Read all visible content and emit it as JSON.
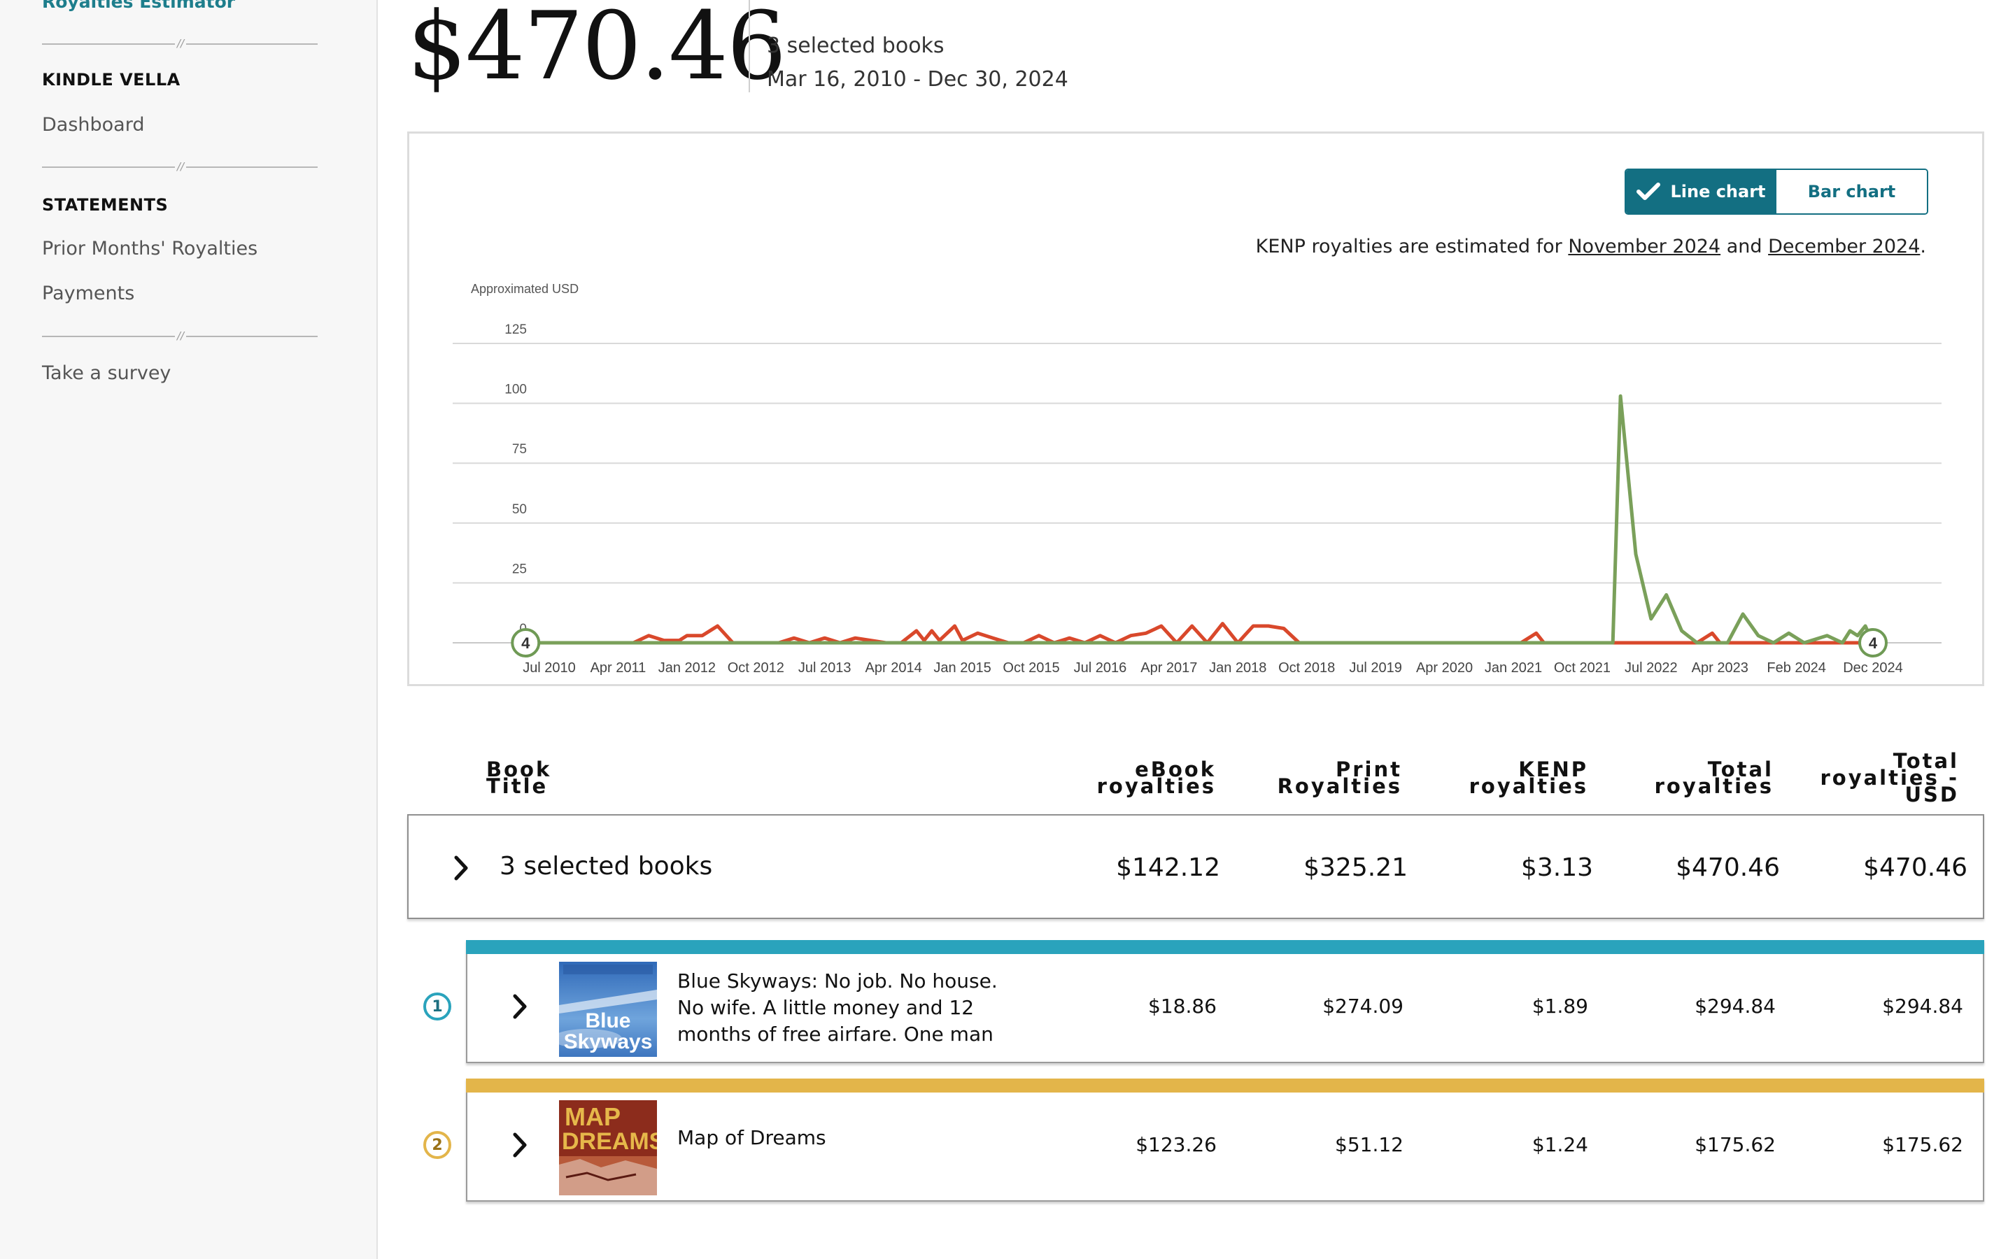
{
  "sidebar": {
    "top_link": "Royalties Estimator",
    "section_vella": "KINDLE VELLA",
    "dashboard": "Dashboard",
    "section_statements": "STATEMENTS",
    "prior_months": "Prior Months' Royalties",
    "payments": "Payments",
    "survey": "Take a survey"
  },
  "header": {
    "total": "$470.46",
    "selected": "3 selected books",
    "range": "Mar 16, 2010 - Dec 30, 2024"
  },
  "chart_controls": {
    "line_label": "Line chart",
    "bar_label": "Bar chart",
    "selected": "Line chart",
    "note_prefix": "KENP royalties are estimated for ",
    "note_month1": "November 2024",
    "note_and": " and ",
    "note_month2": "December 2024",
    "note_suffix": "."
  },
  "chart_data": {
    "type": "line",
    "ylabel": "Approximated USD",
    "ylim": [
      0,
      125
    ],
    "y_ticks": [
      0,
      25,
      50,
      75,
      100,
      125
    ],
    "x_range": [
      "2010-03",
      "2024-12"
    ],
    "x_ticks": [
      "Jul 2010",
      "Apr 2011",
      "Jan 2012",
      "Oct 2012",
      "Jul 2013",
      "Apr 2014",
      "Jan 2015",
      "Oct 2015",
      "Jul 2016",
      "Apr 2017",
      "Jan 2018",
      "Oct 2018",
      "Jul 2019",
      "Apr 2020",
      "Jan 2021",
      "Oct 2021",
      "Jul 2022",
      "Apr 2023",
      "Feb 2024",
      "Dec 2024"
    ],
    "grid": true,
    "start_marker": "4",
    "end_marker": "4",
    "series": [
      {
        "color": "#d9482b",
        "points": [
          [
            "2010-03",
            0
          ],
          [
            "2011-06",
            0
          ],
          [
            "2011-08",
            3
          ],
          [
            "2011-10",
            1
          ],
          [
            "2011-12",
            1
          ],
          [
            "2012-01",
            3
          ],
          [
            "2012-03",
            3
          ],
          [
            "2012-05",
            7
          ],
          [
            "2012-07",
            0
          ],
          [
            "2013-01",
            0
          ],
          [
            "2013-03",
            2
          ],
          [
            "2013-05",
            0
          ],
          [
            "2013-07",
            2
          ],
          [
            "2013-09",
            0
          ],
          [
            "2013-11",
            2
          ],
          [
            "2014-01",
            1
          ],
          [
            "2014-03",
            0
          ],
          [
            "2014-05",
            0
          ],
          [
            "2014-07",
            5
          ],
          [
            "2014-08",
            1
          ],
          [
            "2014-09",
            5
          ],
          [
            "2014-10",
            1
          ],
          [
            "2014-12",
            7
          ],
          [
            "2015-01",
            1
          ],
          [
            "2015-03",
            4
          ],
          [
            "2015-05",
            2
          ],
          [
            "2015-07",
            0
          ],
          [
            "2015-09",
            0
          ],
          [
            "2015-11",
            3
          ],
          [
            "2016-01",
            0
          ],
          [
            "2016-03",
            2
          ],
          [
            "2016-05",
            0
          ],
          [
            "2016-07",
            3
          ],
          [
            "2016-09",
            0
          ],
          [
            "2016-11",
            3
          ],
          [
            "2017-01",
            4
          ],
          [
            "2017-03",
            7
          ],
          [
            "2017-05",
            0
          ],
          [
            "2017-07",
            7
          ],
          [
            "2017-09",
            0
          ],
          [
            "2017-11",
            8
          ],
          [
            "2018-01",
            0
          ],
          [
            "2018-03",
            7
          ],
          [
            "2018-05",
            7
          ],
          [
            "2018-07",
            6
          ],
          [
            "2018-09",
            0
          ],
          [
            "2021-02",
            0
          ],
          [
            "2021-04",
            4
          ],
          [
            "2021-05",
            0
          ],
          [
            "2023-01",
            0
          ],
          [
            "2023-03",
            4
          ],
          [
            "2023-04",
            0
          ],
          [
            "2024-12",
            0
          ]
        ]
      },
      {
        "color": "#7aa05a",
        "points": [
          [
            "2010-03",
            0
          ],
          [
            "2016-03",
            0
          ],
          [
            "2022-02",
            0
          ],
          [
            "2022-03",
            103
          ],
          [
            "2022-05",
            37
          ],
          [
            "2022-07",
            10
          ],
          [
            "2022-09",
            20
          ],
          [
            "2022-11",
            5
          ],
          [
            "2023-01",
            0
          ],
          [
            "2023-05",
            0
          ],
          [
            "2023-07",
            12
          ],
          [
            "2023-09",
            3
          ],
          [
            "2023-11",
            0
          ],
          [
            "2024-01",
            4
          ],
          [
            "2024-03",
            0
          ],
          [
            "2024-06",
            3
          ],
          [
            "2024-08",
            0
          ],
          [
            "2024-09",
            5
          ],
          [
            "2024-10",
            3
          ],
          [
            "2024-11",
            7
          ],
          [
            "2024-12",
            0
          ]
        ]
      }
    ]
  },
  "table": {
    "headers": {
      "title": [
        "Book",
        "Title"
      ],
      "ebook": [
        "eBook",
        "royalties"
      ],
      "print": [
        "Print",
        "Royalties"
      ],
      "kenp": [
        "KENP",
        "royalties"
      ],
      "total": [
        "Total",
        "royalties"
      ],
      "total_usd": [
        "Total",
        "royalties -",
        "USD"
      ]
    },
    "summary": {
      "title": "3 selected books",
      "ebook": "$142.12",
      "print": "$325.21",
      "kenp": "$3.13",
      "total": "$470.46",
      "total_usd": "$470.46"
    },
    "books": [
      {
        "badge": "1",
        "color": "#2aa3bc",
        "cover_text": [
          "Blue",
          "Skyways"
        ],
        "title": "Blue Skyways: No job. No house. No wife. A little money and 12 months of free airfare. One man answers his",
        "ebook": "$18.86",
        "print": "$274.09",
        "kenp": "$1.89",
        "total": "$294.84",
        "total_usd": "$294.84"
      },
      {
        "badge": "2",
        "color": "#e3b54a",
        "cover_text": [
          "MAP",
          "DREAMS"
        ],
        "title": "Map of Dreams",
        "ebook": "$123.26",
        "print": "$51.12",
        "kenp": "$1.24",
        "total": "$175.62",
        "total_usd": "$175.62"
      }
    ]
  }
}
